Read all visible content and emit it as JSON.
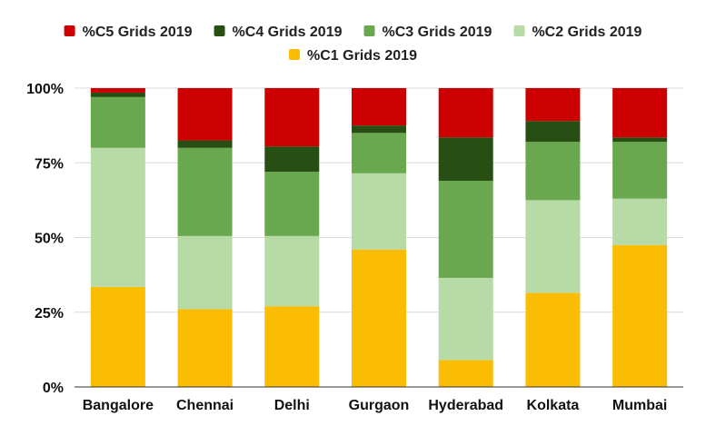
{
  "chart_data": {
    "type": "bar",
    "stacked": true,
    "percent_stacked": true,
    "categories": [
      "Bangalore",
      "Chennai",
      "Delhi",
      "Gurgaon",
      "Hyderabad",
      "Kolkata",
      "Mumbai"
    ],
    "series": [
      {
        "name": "%C1 Grids 2019",
        "color": "#fbbc04",
        "values": [
          33.5,
          26,
          27,
          46,
          9,
          31.5,
          47.5
        ]
      },
      {
        "name": "%C2 Grids 2019",
        "color": "#b7dba6",
        "values": [
          46.5,
          24.5,
          23.5,
          25.5,
          27.5,
          31,
          15.5
        ]
      },
      {
        "name": "%C3 Grids 2019",
        "color": "#6aa84f",
        "values": [
          17,
          29.5,
          21.5,
          13.5,
          32.5,
          19.5,
          19
        ]
      },
      {
        "name": "%C4 Grids 2019",
        "color": "#274e13",
        "values": [
          1.5,
          2.5,
          8.5,
          2.5,
          14.5,
          7,
          1.5
        ]
      },
      {
        "name": "%C5 Grids 2019",
        "color": "#cc0000",
        "values": [
          1.5,
          17.5,
          19.5,
          12.5,
          16.5,
          11,
          16.5
        ]
      }
    ],
    "legend_order": [
      4,
      3,
      2,
      1,
      0
    ],
    "legend_placement": "top",
    "ylim": [
      0,
      100
    ],
    "y_ticks": [
      {
        "value": 0,
        "label": "0%"
      },
      {
        "value": 25,
        "label": "25%"
      },
      {
        "value": 50,
        "label": "50%"
      },
      {
        "value": 75,
        "label": "75%"
      },
      {
        "value": 100,
        "label": "100%"
      }
    ],
    "grid": true,
    "title": "",
    "xlabel": "",
    "ylabel": ""
  }
}
